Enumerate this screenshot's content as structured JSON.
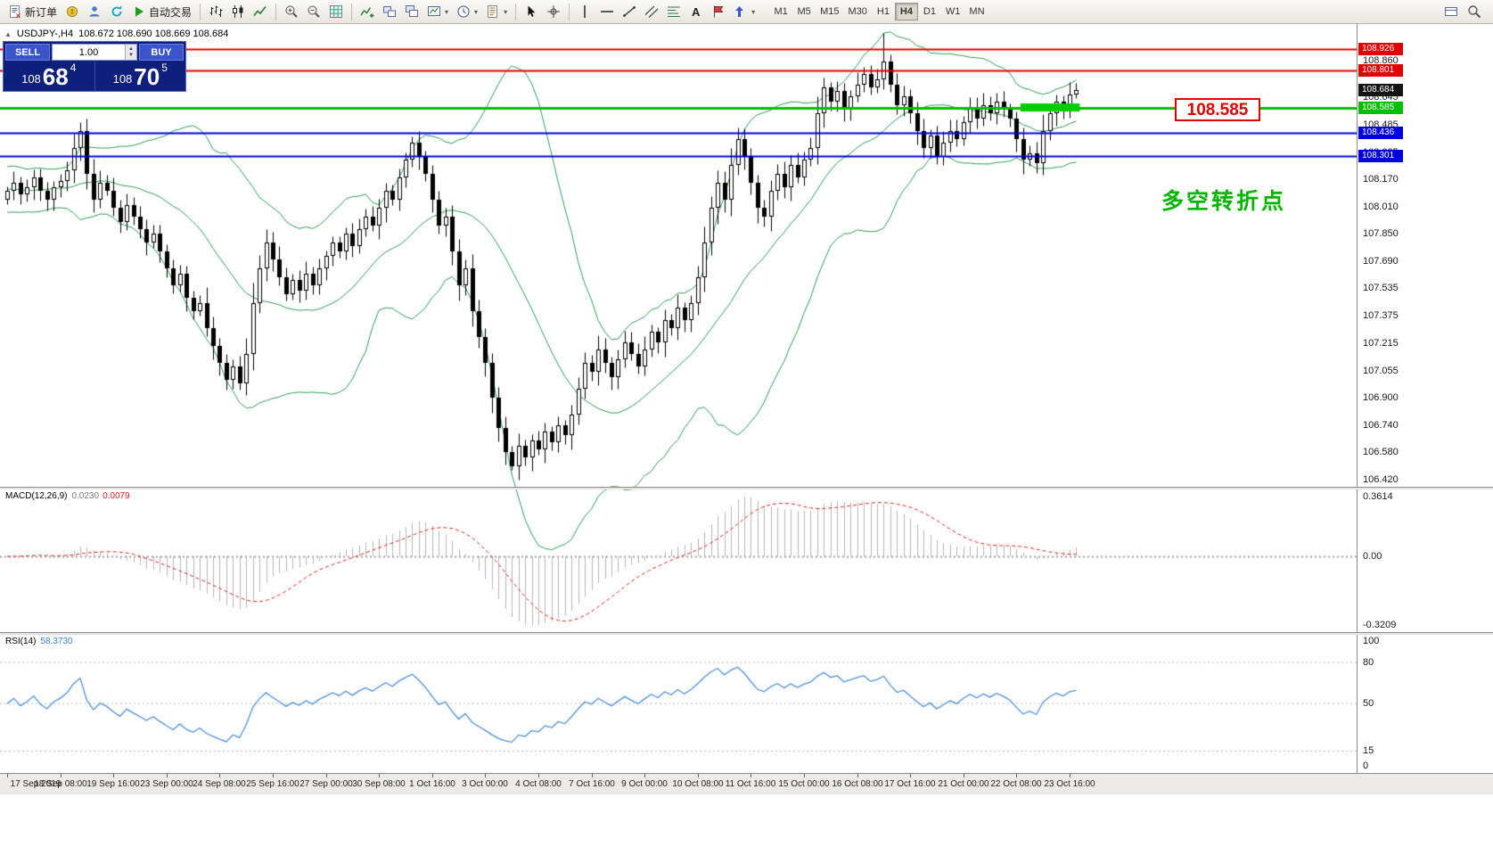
{
  "toolbar": {
    "new_order_label": "新订单",
    "autotrade_label": "自动交易",
    "buttons": [
      {
        "name": "new-order",
        "label_key": "new_order_label"
      },
      {
        "name": "accounts"
      },
      {
        "name": "profiles"
      },
      {
        "name": "refresh"
      },
      {
        "name": "autotrade",
        "label_key": "autotrade_label"
      },
      {
        "sep": true
      },
      {
        "name": "bar-chart"
      },
      {
        "name": "candle-chart"
      },
      {
        "name": "line-chart"
      },
      {
        "sep": true
      },
      {
        "name": "zoom-in"
      },
      {
        "name": "zoom-out"
      },
      {
        "name": "grid"
      },
      {
        "sep": true
      },
      {
        "name": "indicators"
      },
      {
        "name": "tile-windows"
      },
      {
        "name": "cascade-windows"
      },
      {
        "name": "chart-dropdown",
        "drop": true
      },
      {
        "name": "period-dropdown",
        "drop": true
      },
      {
        "name": "template-dropdown",
        "drop": true
      },
      {
        "sep": true
      },
      {
        "name": "cursor"
      },
      {
        "name": "crosshair"
      },
      {
        "sep": true
      },
      {
        "name": "vline"
      },
      {
        "name": "hline"
      },
      {
        "name": "trendline"
      },
      {
        "name": "channel"
      },
      {
        "name": "fibonacci"
      },
      {
        "name": "text"
      },
      {
        "name": "label"
      },
      {
        "name": "arrows",
        "drop": true
      }
    ],
    "right_buttons": [
      {
        "name": "window-list"
      },
      {
        "name": "search"
      }
    ],
    "timeframes": [
      "M1",
      "M5",
      "M15",
      "M30",
      "H1",
      "H4",
      "D1",
      "W1",
      "MN"
    ],
    "active_timeframe": "H4"
  },
  "chart": {
    "title": "USDJPY-,H4",
    "ohlc": "108.672 108.690 108.669 108.684",
    "current_price": "108.684",
    "price_label": "108.585",
    "annotation": "多空转折点"
  },
  "one_click": {
    "sell_label": "SELL",
    "buy_label": "BUY",
    "volume": "1.00",
    "sell_price_main": "108",
    "sell_price_big": "68",
    "sell_price_sup": "4",
    "buy_price_main": "108",
    "buy_price_big": "70",
    "buy_price_sup": "5"
  },
  "axis": {
    "price_ticks": [
      108.86,
      108.645,
      108.485,
      108.325,
      108.17,
      108.01,
      107.85,
      107.69,
      107.535,
      107.375,
      107.215,
      107.055,
      106.9,
      106.74,
      106.58,
      106.42
    ],
    "time_labels": [
      "17 Sep 2019",
      "18 Sep 08:00",
      "19 Sep 16:00",
      "23 Sep 00:00",
      "24 Sep 08:00",
      "25 Sep 16:00",
      "27 Sep 00:00",
      "30 Sep 08:00",
      "1 Oct 16:00",
      "3 Oct 00:00",
      "4 Oct 08:00",
      "7 Oct 16:00",
      "9 Oct 00:00",
      "10 Oct 08:00",
      "11 Oct 16:00",
      "15 Oct 00:00",
      "16 Oct 08:00",
      "17 Oct 16:00",
      "21 Oct 00:00",
      "22 Oct 08:00",
      "23 Oct 16:00"
    ]
  },
  "lines": [
    {
      "price": 108.926,
      "color": "#e00000",
      "width": 2,
      "label": "108.926"
    },
    {
      "price": 108.801,
      "color": "#e00000",
      "width": 2,
      "label": "108.801"
    },
    {
      "price": 108.585,
      "color": "#00bf00",
      "width": 3,
      "label": "108.585"
    },
    {
      "price": 108.436,
      "color": "#0000dd",
      "width": 2,
      "label": "108.436"
    },
    {
      "price": 108.301,
      "color": "#0000dd",
      "width": 2,
      "label": "108.301"
    }
  ],
  "highlight_segment": {
    "price": 108.585,
    "bar_start": 153,
    "bar_end": 161,
    "color": "#00cc00",
    "thickness": 9
  },
  "indicators": {
    "macd": {
      "label": "MACD(12,26,9)",
      "value_main": "0.0230",
      "value_signal": "0.0079",
      "axis_max": "0.3614",
      "axis_zero": "0.00",
      "axis_min": "-0.3209",
      "hist_color": "#b6b6b6",
      "signal_color": "#e02020"
    },
    "rsi": {
      "label": "RSI(14)",
      "value": "58.3730",
      "levels": [
        100,
        80,
        50,
        15,
        0
      ],
      "line_color": "#4f8fdd"
    }
  },
  "chart_data": {
    "type": "candlestick",
    "symbol": "USDJPY",
    "period": "H4",
    "price_range": [
      106.38,
      109.07
    ],
    "bull_color": "#ffffff",
    "bear_color": "#000000",
    "band_color": "#2e9b57",
    "bollinger": {
      "period": 20,
      "deviation": 2
    },
    "macd_params": {
      "fast": 12,
      "slow": 26,
      "signal": 9
    },
    "rsi_period": 14,
    "closes": [
      108.1,
      108.15,
      108.08,
      108.12,
      108.18,
      108.1,
      108.05,
      108.12,
      108.16,
      108.22,
      108.35,
      108.45,
      108.2,
      108.05,
      108.15,
      108.1,
      108.0,
      107.92,
      108.02,
      107.95,
      107.88,
      107.8,
      107.85,
      107.75,
      107.65,
      107.55,
      107.62,
      107.48,
      107.4,
      107.45,
      107.3,
      107.2,
      107.1,
      107.0,
      107.08,
      106.98,
      107.15,
      107.45,
      107.65,
      107.8,
      107.7,
      107.6,
      107.5,
      107.58,
      107.52,
      107.62,
      107.55,
      107.65,
      107.72,
      107.8,
      107.75,
      107.85,
      107.78,
      107.88,
      107.95,
      107.9,
      108.0,
      108.1,
      108.05,
      108.18,
      108.28,
      108.38,
      108.3,
      108.2,
      108.05,
      107.9,
      107.95,
      107.75,
      107.55,
      107.65,
      107.4,
      107.25,
      107.1,
      106.9,
      106.72,
      106.58,
      106.5,
      106.62,
      106.55,
      106.65,
      106.6,
      106.7,
      106.64,
      106.74,
      106.68,
      106.8,
      106.95,
      107.1,
      107.05,
      107.18,
      107.1,
      107.02,
      107.12,
      107.22,
      107.15,
      107.08,
      107.18,
      107.28,
      107.22,
      107.35,
      107.3,
      107.42,
      107.35,
      107.45,
      107.6,
      107.8,
      108.0,
      108.15,
      108.05,
      108.25,
      108.4,
      108.3,
      108.15,
      108.0,
      107.95,
      108.1,
      108.2,
      108.12,
      108.25,
      108.18,
      108.28,
      108.35,
      108.55,
      108.7,
      108.62,
      108.68,
      108.58,
      108.65,
      108.72,
      108.78,
      108.7,
      108.75,
      108.85,
      108.72,
      108.6,
      108.65,
      108.55,
      108.45,
      108.35,
      108.42,
      108.3,
      108.38,
      108.45,
      108.4,
      108.5,
      108.58,
      108.52,
      108.6,
      108.55,
      108.62,
      108.58,
      108.52,
      108.4,
      108.28,
      108.32,
      108.26,
      108.45,
      108.55,
      108.62,
      108.58,
      108.66,
      108.684
    ],
    "wick_overrides": {
      "11": {
        "high": 108.5
      },
      "76": {
        "low": 106.48
      },
      "110": {
        "high": 108.47
      },
      "123": {
        "high": 108.76
      },
      "132": {
        "high": 109.02
      }
    }
  }
}
